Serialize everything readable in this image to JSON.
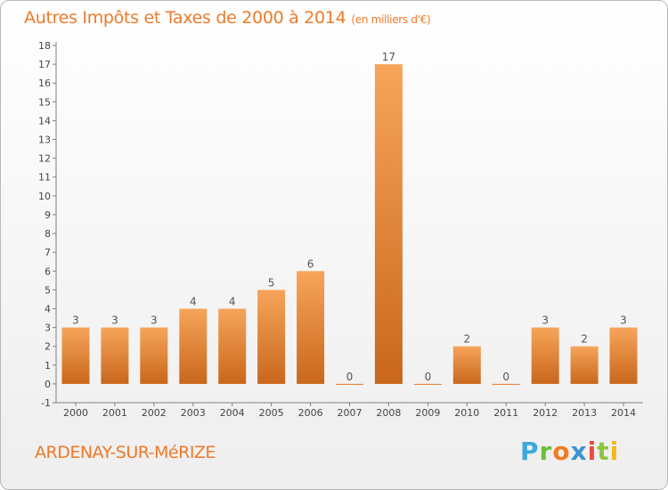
{
  "chart_data": {
    "type": "bar",
    "title": "Autres Impôts et Taxes de 2000 à 2014",
    "subtitle": "(en milliers d'€)",
    "categories": [
      "2000",
      "2001",
      "2002",
      "2003",
      "2004",
      "2005",
      "2006",
      "2007",
      "2008",
      "2009",
      "2010",
      "2011",
      "2012",
      "2013",
      "2014"
    ],
    "values": [
      3,
      3,
      3,
      4,
      4,
      5,
      6,
      0,
      17,
      0,
      2,
      0,
      3,
      2,
      3
    ],
    "ylim": [
      -1,
      18
    ],
    "yticks": [
      -1,
      0,
      1,
      2,
      3,
      4,
      5,
      6,
      7,
      8,
      9,
      10,
      11,
      12,
      13,
      14,
      15,
      16,
      17,
      18
    ],
    "grid": false,
    "bar_color": "#ee7a2b",
    "label_color": "#555555",
    "axis_color": "#808080"
  },
  "footer": {
    "commune": "ARDENAY-SUR-MéRIZE",
    "logo": "Proxiti"
  }
}
